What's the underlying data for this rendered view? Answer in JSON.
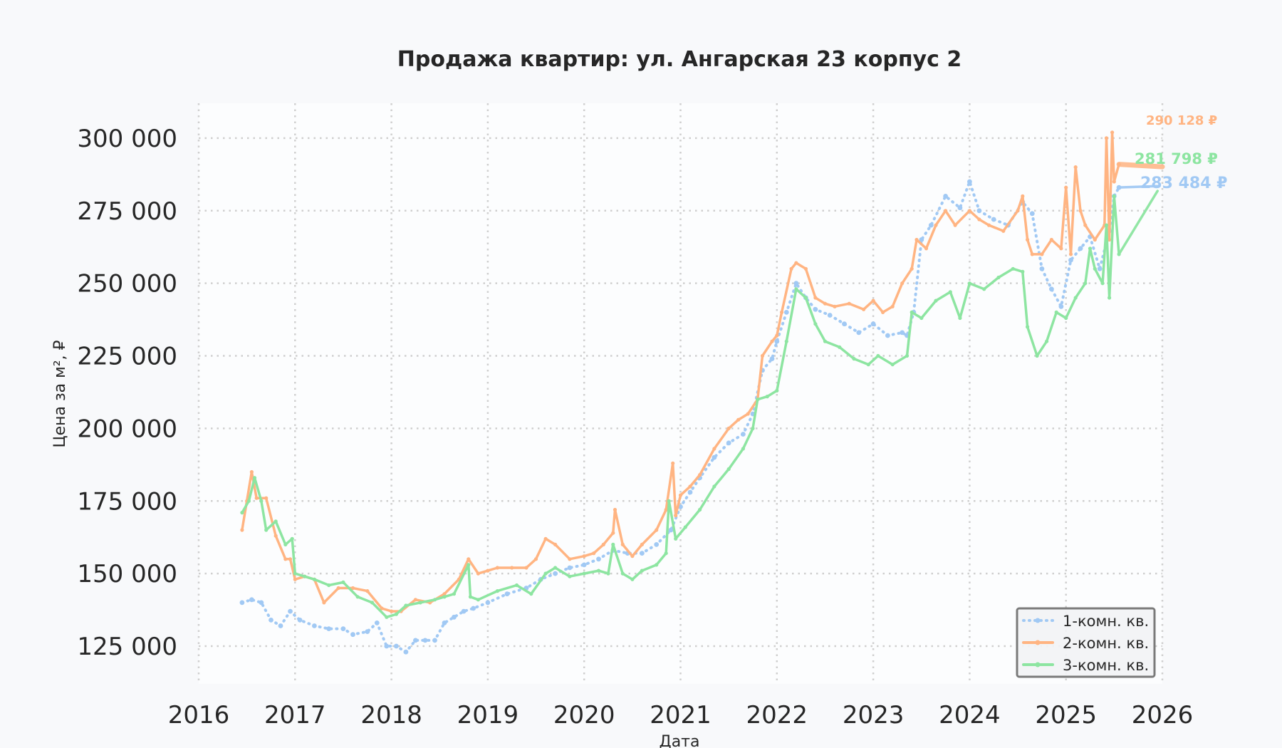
{
  "chart_data": {
    "type": "line",
    "title": "Продажа квартир: ул. Ангарская 23 корпус 2",
    "xlabel": "Дата",
    "ylabel": "Цена за м², ₽",
    "xlim": [
      2016.0,
      2026.0
    ],
    "ylim": [
      112000,
      312000
    ],
    "x_ticks": [
      {
        "value": 2016,
        "label": "2016"
      },
      {
        "value": 2017,
        "label": "2017"
      },
      {
        "value": 2018,
        "label": "2018"
      },
      {
        "value": 2019,
        "label": "2019"
      },
      {
        "value": 2020,
        "label": "2020"
      },
      {
        "value": 2021,
        "label": "2021"
      },
      {
        "value": 2022,
        "label": "2022"
      },
      {
        "value": 2023,
        "label": "2023"
      },
      {
        "value": 2024,
        "label": "2024"
      },
      {
        "value": 2025,
        "label": "2025"
      },
      {
        "value": 2026,
        "label": "2026"
      }
    ],
    "y_ticks": [
      {
        "value": 125000,
        "label": "125 000"
      },
      {
        "value": 150000,
        "label": "150 000"
      },
      {
        "value": 175000,
        "label": "175 000"
      },
      {
        "value": 200000,
        "label": "200 000"
      },
      {
        "value": 225000,
        "label": "225 000"
      },
      {
        "value": 250000,
        "label": "250 000"
      },
      {
        "value": 275000,
        "label": "275 000"
      },
      {
        "value": 300000,
        "label": "300 000"
      }
    ],
    "grid": true,
    "legend_position": "lower-right",
    "series": [
      {
        "name": "1-комн. кв.",
        "color": "#a1c9f4",
        "style": "dotted",
        "x": [
          2016.45,
          2016.55,
          2016.65,
          2016.75,
          2016.85,
          2016.95,
          2017.05,
          2017.2,
          2017.35,
          2017.5,
          2017.6,
          2017.75,
          2017.85,
          2017.95,
          2018.05,
          2018.15,
          2018.25,
          2018.35,
          2018.45,
          2018.55,
          2018.65,
          2018.75,
          2018.85,
          2019.0,
          2019.2,
          2019.4,
          2019.55,
          2019.7,
          2019.85,
          2020.0,
          2020.15,
          2020.3,
          2020.45,
          2020.6,
          2020.75,
          2020.9,
          2021.0,
          2021.1,
          2021.2,
          2021.35,
          2021.5,
          2021.65,
          2021.75,
          2021.85,
          2021.95,
          2022.0,
          2022.1,
          2022.2,
          2022.3,
          2022.4,
          2022.55,
          2022.7,
          2022.85,
          2023.0,
          2023.15,
          2023.3,
          2023.35,
          2023.42,
          2023.5,
          2023.6,
          2023.75,
          2023.9,
          2024.0,
          2024.1,
          2024.25,
          2024.4,
          2024.55,
          2024.65,
          2024.75,
          2024.85,
          2024.95,
          2025.05,
          2025.15,
          2025.25,
          2025.35,
          2025.45,
          2025.5,
          2025.55,
          2025.95
        ],
        "y": [
          140000,
          141000,
          140000,
          134000,
          132000,
          137000,
          134000,
          132000,
          131000,
          131000,
          129000,
          130000,
          133000,
          125000,
          125000,
          123000,
          127000,
          127000,
          127000,
          133000,
          135000,
          137000,
          138000,
          140000,
          143000,
          145000,
          148000,
          150000,
          152000,
          153000,
          155000,
          158000,
          157000,
          157000,
          160000,
          165000,
          173000,
          178000,
          183000,
          190000,
          195000,
          198000,
          205000,
          220000,
          224000,
          230000,
          240000,
          250000,
          245000,
          241000,
          239000,
          236000,
          233000,
          236000,
          232000,
          233000,
          232000,
          240000,
          265000,
          270000,
          280000,
          276000,
          285000,
          275000,
          272000,
          270000,
          278000,
          274000,
          255000,
          248000,
          242000,
          258000,
          262000,
          266000,
          255000,
          268000,
          280000,
          283000,
          283484
        ]
      },
      {
        "name": "2-комн. кв.",
        "color": "#ffb482",
        "style": "solid",
        "x": [
          2016.45,
          2016.5,
          2016.55,
          2016.6,
          2016.7,
          2016.8,
          2016.9,
          2016.95,
          2017.0,
          2017.1,
          2017.2,
          2017.3,
          2017.45,
          2017.6,
          2017.75,
          2017.9,
          2018.0,
          2018.1,
          2018.25,
          2018.4,
          2018.55,
          2018.7,
          2018.8,
          2018.9,
          2019.0,
          2019.1,
          2019.25,
          2019.4,
          2019.5,
          2019.6,
          2019.7,
          2019.85,
          2020.0,
          2020.1,
          2020.2,
          2020.3,
          2020.32,
          2020.4,
          2020.5,
          2020.6,
          2020.75,
          2020.85,
          2020.92,
          2020.95,
          2021.0,
          2021.1,
          2021.2,
          2021.35,
          2021.5,
          2021.6,
          2021.7,
          2021.8,
          2021.85,
          2021.95,
          2022.0,
          2022.05,
          2022.15,
          2022.2,
          2022.3,
          2022.4,
          2022.5,
          2022.6,
          2022.75,
          2022.9,
          2023.0,
          2023.1,
          2023.2,
          2023.3,
          2023.4,
          2023.45,
          2023.55,
          2023.65,
          2023.75,
          2023.85,
          2024.0,
          2024.1,
          2024.2,
          2024.35,
          2024.5,
          2024.55,
          2024.6,
          2024.65,
          2024.75,
          2024.85,
          2024.95,
          2025.0,
          2025.05,
          2025.1,
          2025.15,
          2025.2,
          2025.3,
          2025.4,
          2025.42,
          2025.45,
          2025.48,
          2025.5,
          2025.55,
          2026.0
        ],
        "y": [
          165000,
          175000,
          185000,
          176000,
          176000,
          163000,
          155000,
          155000,
          148000,
          149000,
          148000,
          140000,
          145000,
          145000,
          144000,
          138000,
          137000,
          137000,
          141000,
          140000,
          143000,
          148000,
          155000,
          150000,
          151000,
          152000,
          152000,
          152000,
          155000,
          162000,
          160000,
          155000,
          156000,
          157000,
          160000,
          164000,
          172000,
          160000,
          156000,
          160000,
          165000,
          172000,
          188000,
          170000,
          177000,
          180000,
          184000,
          193000,
          200000,
          203000,
          205000,
          210000,
          225000,
          230000,
          232000,
          240000,
          255000,
          257000,
          255000,
          245000,
          243000,
          242000,
          243000,
          241000,
          244000,
          240000,
          242000,
          250000,
          255000,
          265000,
          262000,
          270000,
          275000,
          270000,
          275000,
          272000,
          270000,
          268000,
          275000,
          280000,
          265000,
          260000,
          260000,
          265000,
          262000,
          283000,
          260000,
          290000,
          275000,
          270000,
          265000,
          270000,
          300000,
          265000,
          302000,
          285000,
          291000,
          290128
        ]
      },
      {
        "name": "3-комн. кв.",
        "color": "#8de5a1",
        "style": "solid",
        "x": [
          2016.45,
          2016.52,
          2016.58,
          2016.65,
          2016.7,
          2016.8,
          2016.9,
          2016.97,
          2017.0,
          2017.1,
          2017.2,
          2017.35,
          2017.5,
          2017.65,
          2017.8,
          2017.95,
          2018.05,
          2018.15,
          2018.3,
          2018.45,
          2018.55,
          2018.65,
          2018.8,
          2018.82,
          2018.9,
          2019.1,
          2019.3,
          2019.45,
          2019.6,
          2019.7,
          2019.85,
          2020.0,
          2020.15,
          2020.25,
          2020.3,
          2020.4,
          2020.5,
          2020.6,
          2020.75,
          2020.85,
          2020.88,
          2020.95,
          2021.05,
          2021.2,
          2021.35,
          2021.5,
          2021.65,
          2021.75,
          2021.8,
          2021.9,
          2022.0,
          2022.1,
          2022.2,
          2022.3,
          2022.4,
          2022.5,
          2022.65,
          2022.8,
          2022.95,
          2023.05,
          2023.2,
          2023.35,
          2023.4,
          2023.5,
          2023.65,
          2023.8,
          2023.9,
          2024.0,
          2024.15,
          2024.3,
          2024.45,
          2024.55,
          2024.6,
          2024.7,
          2024.8,
          2024.9,
          2025.0,
          2025.1,
          2025.2,
          2025.25,
          2025.3,
          2025.38,
          2025.42,
          2025.45,
          2025.5,
          2025.55,
          2025.95
        ],
        "y": [
          171000,
          175000,
          183000,
          175000,
          165000,
          168000,
          160000,
          162000,
          150000,
          149000,
          148000,
          146000,
          147000,
          142000,
          140000,
          135000,
          136000,
          139000,
          140000,
          141000,
          142000,
          143000,
          153000,
          142000,
          141000,
          144000,
          146000,
          143000,
          150000,
          152000,
          149000,
          150000,
          151000,
          150000,
          160000,
          150000,
          148000,
          151000,
          153000,
          157000,
          175000,
          162000,
          166000,
          172000,
          180000,
          186000,
          193000,
          200000,
          210000,
          211000,
          213000,
          230000,
          248000,
          245000,
          236000,
          230000,
          228000,
          224000,
          222000,
          225000,
          222000,
          225000,
          240000,
          238000,
          244000,
          247000,
          238000,
          250000,
          248000,
          252000,
          255000,
          254000,
          235000,
          225000,
          230000,
          240000,
          238000,
          245000,
          250000,
          262000,
          255000,
          250000,
          270000,
          245000,
          280000,
          260000,
          281798
        ]
      }
    ],
    "end_labels": [
      {
        "series": "2-комн. кв.",
        "text": "290 128 ₽",
        "color": "#ffb482"
      },
      {
        "series": "3-комн. кв.",
        "text": "281 798 ₽",
        "color": "#8de5a1"
      },
      {
        "series": "1-комн. кв.",
        "text": "283 484 ₽",
        "color": "#a1c9f4"
      }
    ]
  }
}
